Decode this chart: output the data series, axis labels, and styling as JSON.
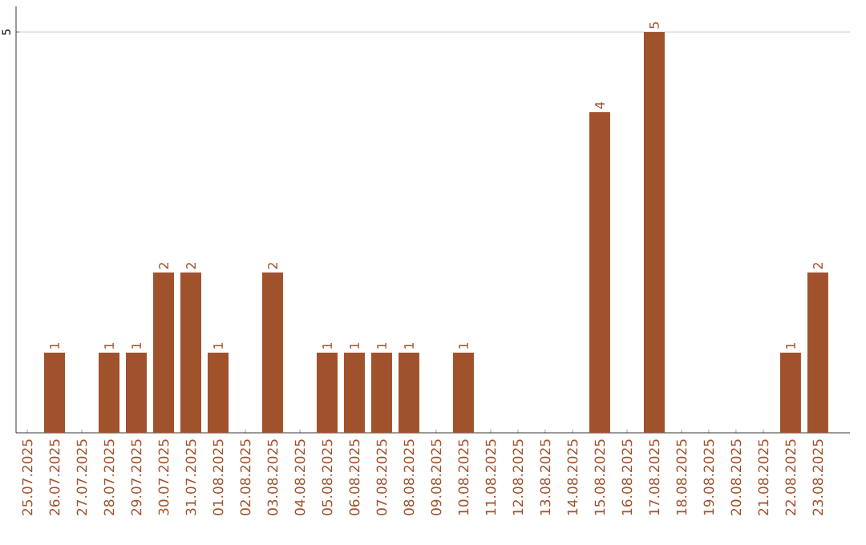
{
  "chart_data": {
    "type": "bar",
    "color": "#a0522d",
    "categories": [
      "25.07.2025",
      "26.07.2025",
      "27.07.2025",
      "28.07.2025",
      "29.07.2025",
      "30.07.2025",
      "31.07.2025",
      "01.08.2025",
      "02.08.2025",
      "03.08.2025",
      "04.08.2025",
      "05.08.2025",
      "06.08.2025",
      "07.08.2025",
      "08.08.2025",
      "09.08.2025",
      "10.08.2025",
      "11.08.2025",
      "12.08.2025",
      "13.08.2025",
      "14.08.2025",
      "15.08.2025",
      "16.08.2025",
      "17.08.2025",
      "18.08.2025",
      "19.08.2025",
      "20.08.2025",
      "21.08.2025",
      "22.08.2025",
      "23.08.2025"
    ],
    "values": [
      0,
      1,
      0,
      1,
      1,
      2,
      2,
      1,
      0,
      2,
      0,
      1,
      1,
      1,
      1,
      0,
      1,
      0,
      0,
      0,
      0,
      4,
      0,
      5,
      0,
      0,
      0,
      0,
      1,
      2
    ],
    "value_labels": [
      null,
      "1",
      null,
      "1",
      "1",
      "2",
      "2",
      "1",
      null,
      "2",
      null,
      "1",
      "1",
      "1",
      "1",
      null,
      "1",
      null,
      null,
      null,
      null,
      "4",
      null,
      "5",
      null,
      null,
      null,
      null,
      "1",
      "2"
    ],
    "ylim": [
      0,
      5.32
    ],
    "yticks": [
      5
    ],
    "grid": "y"
  }
}
